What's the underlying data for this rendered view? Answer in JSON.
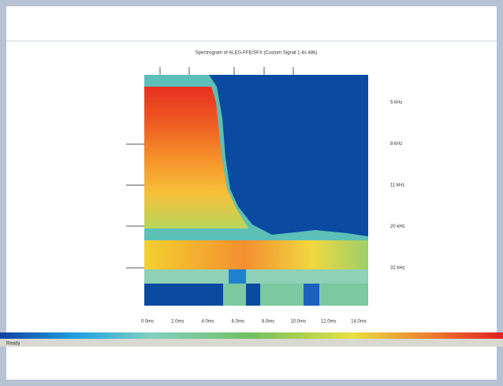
{
  "window": {
    "title": "Spectrogram of ALEG-FFE/SFX (Custom Signal 1-4s 48k)",
    "x_labels": [
      "0.0ms",
      "2.0ms",
      "4.0ms",
      "6.0ms",
      "8.0ms",
      "10.0ms",
      "12.0ms",
      "14.0ms"
    ],
    "y_labels": [
      "5 kHz",
      "8 kHz",
      "11 kHz",
      "20 kHz",
      "32 kHz"
    ],
    "status": "Ready"
  }
}
